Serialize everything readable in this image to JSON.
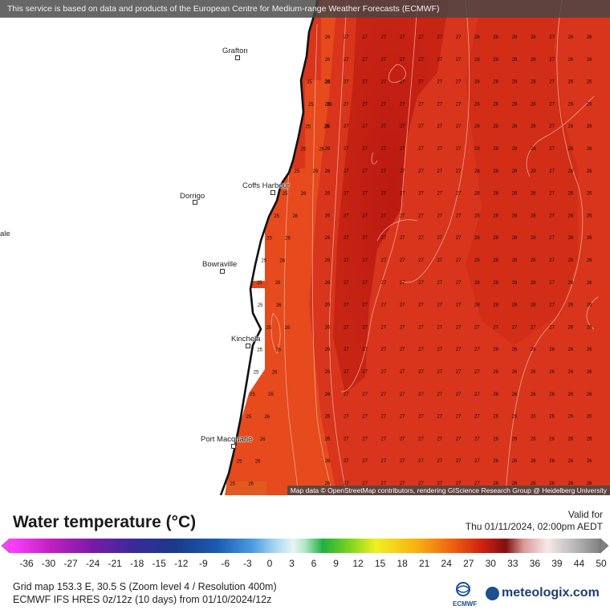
{
  "header": {
    "notice": "This service is based on data and products of the European Centre for Medium-range Weather Forecasts (ECMWF)"
  },
  "map": {
    "attribution": "Map data © OpenStreetMap contributors, rendering GIScience Research Group @ Heidelberg University",
    "cities": [
      {
        "name": "Grafton"
      },
      {
        "name": "Coffs Harbour"
      },
      {
        "name": "Dorrigo"
      },
      {
        "name": "ale"
      },
      {
        "name": "Bowraville"
      },
      {
        "name": "Kinchela"
      },
      {
        "name": "Port Macquarie"
      }
    ],
    "field_colors": {
      "warm_27": "#d8351c",
      "core_28": "#c21c12",
      "cool_25": "#ea4a1c",
      "land": "#ffffff"
    }
  },
  "legend": {
    "title": "Water temperature (°C)",
    "valid_label": "Valid for",
    "valid_time": "Thu 01/11/2024, 02:00pm AEDT",
    "ticks": [
      "-36",
      "-30",
      "-27",
      "-24",
      "-21",
      "-18",
      "-15",
      "-12",
      "-9",
      "-6",
      "-3",
      "0",
      "3",
      "6",
      "9",
      "12",
      "15",
      "18",
      "21",
      "24",
      "27",
      "30",
      "33",
      "36",
      "39",
      "44",
      "50"
    ],
    "footer_line1": "Grid map 153.3 E, 30.5 S (Zoom level 4 / Resolution 400m)",
    "footer_line2": "ECMWF IFS HRES 0z/12z (10 days) from 01/10/2024/12z",
    "ecmwf_label": "ECMWF",
    "brand": "meteologix.com"
  }
}
